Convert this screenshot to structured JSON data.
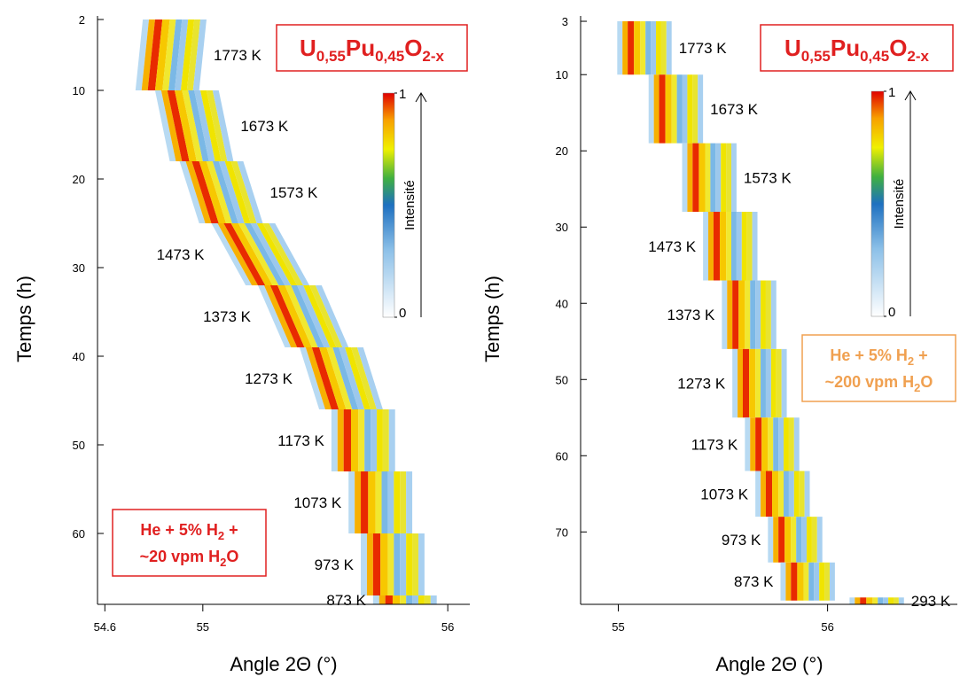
{
  "chart_data": [
    {
      "type": "xrd-map",
      "formula": [
        "U",
        "0,55",
        "Pu",
        "0,45",
        "O",
        "2-x"
      ],
      "gas": [
        [
          "He + 5% H",
          "2",
          " +"
        ],
        [
          "~20 vpm H",
          "2",
          "O"
        ]
      ],
      "gas_color": "#e02020",
      "xlabel": "Angle 2Θ (°)",
      "ylabel": "Temps (h)",
      "xlim": [
        54.57,
        56.09
      ],
      "xticks": [
        54.6,
        55,
        56
      ],
      "ylim": [
        1.6,
        68.0
      ],
      "yticks": [
        2,
        10,
        20,
        30,
        40,
        50,
        60
      ],
      "colorbar": {
        "label": "Intensité",
        "ticks": [
          0,
          1
        ]
      },
      "segments": [
        {
          "label": "1773 K",
          "time": [
            2,
            10
          ],
          "angle": [
            54.79,
            54.76
          ]
        },
        {
          "label": "1673 K",
          "time": [
            10,
            18
          ],
          "angle": [
            54.84,
            54.9
          ]
        },
        {
          "label": "1573 K",
          "time": [
            18,
            25
          ],
          "angle": [
            54.94,
            55.02
          ]
        },
        {
          "label": "1473 K",
          "time": [
            25,
            32
          ],
          "angle": [
            55.07,
            55.21
          ]
        },
        {
          "label": "1373 K",
          "time": [
            32,
            39
          ],
          "angle": [
            55.26,
            55.37
          ]
        },
        {
          "label": "1273 K",
          "time": [
            39,
            46
          ],
          "angle": [
            55.43,
            55.51
          ]
        },
        {
          "label": "1173 K",
          "time": [
            46,
            53
          ],
          "angle": [
            55.56,
            55.56
          ]
        },
        {
          "label": "1073 K",
          "time": [
            53,
            60
          ],
          "angle": [
            55.63,
            55.63
          ]
        },
        {
          "label": "973 K",
          "time": [
            60,
            67
          ],
          "angle": [
            55.68,
            55.68
          ]
        },
        {
          "label": "873 K",
          "time": [
            67,
            68
          ],
          "angle": [
            55.73,
            55.73
          ]
        }
      ]
    },
    {
      "type": "xrd-map",
      "formula": [
        "U",
        "0,55",
        "Pu",
        "0,45",
        "O",
        "2-x"
      ],
      "gas": [
        [
          "He + 5% H",
          "2",
          " +"
        ],
        [
          "~200 vpm H",
          "2",
          "O"
        ]
      ],
      "gas_color": "#f0a050",
      "xlabel": "Angle 2Θ (°)",
      "ylabel": "Temps (h)",
      "xlim": [
        54.82,
        56.62
      ],
      "xticks": [
        55,
        56
      ],
      "ylim": [
        2.3,
        79.5
      ],
      "yticks": [
        3,
        10,
        20,
        30,
        40,
        50,
        60,
        70
      ],
      "colorbar": {
        "label": "Intensité",
        "ticks": [
          0,
          1
        ]
      },
      "segments": [
        {
          "label": "1773 K",
          "time": [
            3,
            10
          ],
          "angle": [
            55.03,
            55.03
          ]
        },
        {
          "label": "1673 K",
          "time": [
            10,
            19
          ],
          "angle": [
            55.18,
            55.18
          ]
        },
        {
          "label": "1573 K",
          "time": [
            19,
            28
          ],
          "angle": [
            55.34,
            55.34
          ]
        },
        {
          "label": "1473 K",
          "time": [
            28,
            37
          ],
          "angle": [
            55.44,
            55.44
          ]
        },
        {
          "label": "1373 K",
          "time": [
            37,
            46
          ],
          "angle": [
            55.53,
            55.53
          ]
        },
        {
          "label": "1273 K",
          "time": [
            46,
            55
          ],
          "angle": [
            55.58,
            55.58
          ]
        },
        {
          "label": "1173 K",
          "time": [
            55,
            62
          ],
          "angle": [
            55.64,
            55.64
          ]
        },
        {
          "label": "1073 K",
          "time": [
            62,
            68
          ],
          "angle": [
            55.69,
            55.69
          ]
        },
        {
          "label": "973 K",
          "time": [
            68,
            74
          ],
          "angle": [
            55.75,
            55.75
          ]
        },
        {
          "label": "873 K",
          "time": [
            74,
            79
          ],
          "angle": [
            55.81,
            55.81
          ]
        },
        {
          "label": "293 K",
          "time": [
            78.6,
            79.5
          ],
          "angle": [
            56.14,
            56.14
          ]
        }
      ]
    }
  ]
}
